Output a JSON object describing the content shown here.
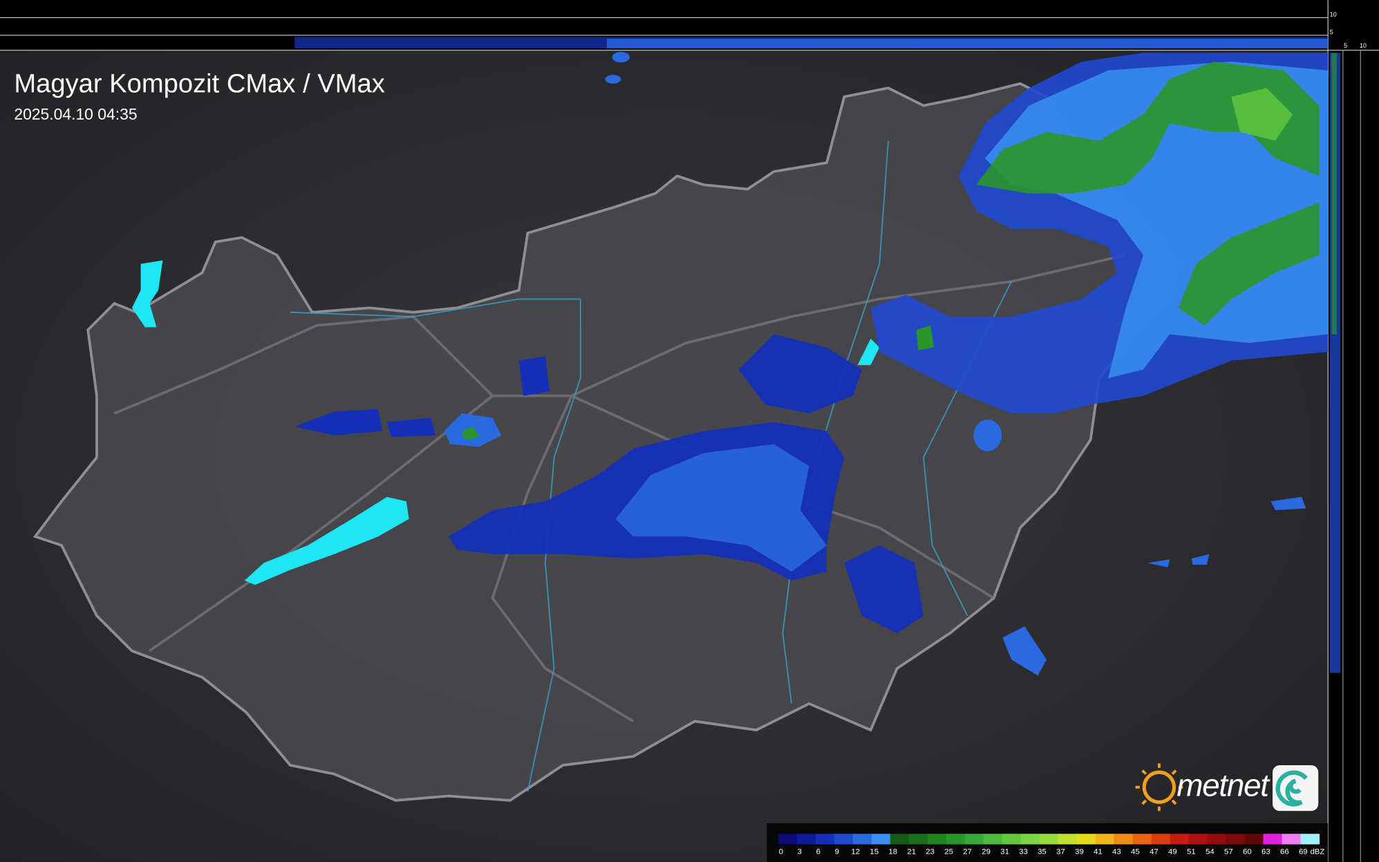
{
  "header": {
    "title": "Magyar Kompozit CMax / VMax",
    "timestamp": "2025.04.10 04:35"
  },
  "side_axis": {
    "top_labels": [
      "10",
      "5"
    ],
    "right_labels": [
      "5",
      "10"
    ]
  },
  "logo": {
    "text": "metnet"
  },
  "legend": {
    "ticks": [
      0,
      3,
      6,
      9,
      12,
      15,
      18,
      21,
      23,
      25,
      27,
      29,
      31,
      33,
      35,
      37,
      39,
      41,
      43,
      45,
      47,
      49,
      51,
      54,
      57,
      60,
      63,
      66,
      69
    ],
    "colors": [
      "#0a0a78",
      "#0f1a9a",
      "#1530b8",
      "#1f4ad0",
      "#2a6ae0",
      "#3a8ff0",
      "#145a14",
      "#1a6e1a",
      "#208420",
      "#2a962a",
      "#38a838",
      "#4cb83c",
      "#62c83e",
      "#7ad444",
      "#96dc3c",
      "#c0e030",
      "#e6d81e",
      "#f0b41a",
      "#f08c14",
      "#e86410",
      "#dc3c10",
      "#c81c10",
      "#b01010",
      "#960c0c",
      "#7c0a0a",
      "#600808",
      "#e020e0",
      "#f080f0",
      "#a0f0f8"
    ],
    "unit": "dBZ"
  }
}
